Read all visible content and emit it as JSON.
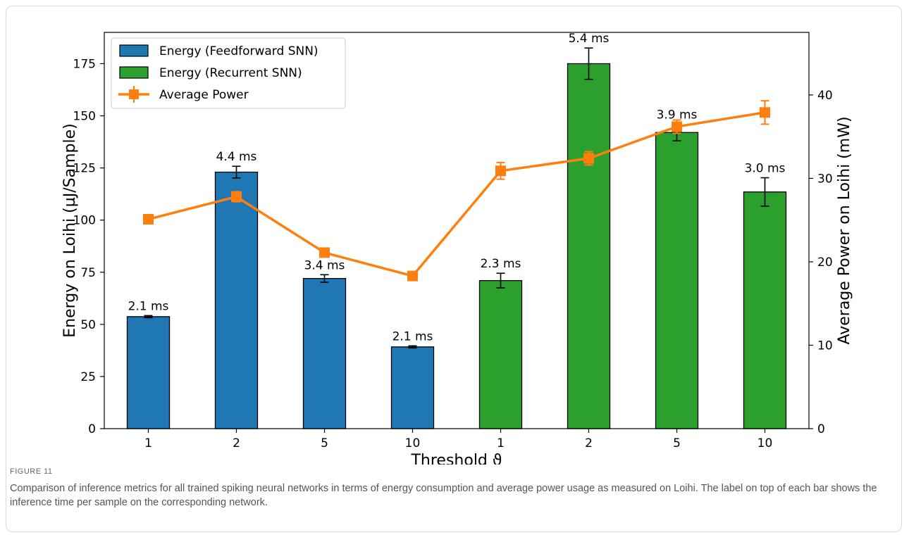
{
  "figure": {
    "label": "FIGURE 11",
    "caption": "Comparison of inference metrics for all trained spiking neural networks in terms of energy consumption and average power usage as measured on Loihi. The label on top of each bar shows the inference time per sample on the corresponding network."
  },
  "chart_data": {
    "type": "bar",
    "title": "",
    "xlabel": "Threshold ϑ",
    "ylabel": "Energy on Loihi (µJ/Sample)",
    "y2label": "Average Power on Loihi (mW)",
    "categories": [
      "1",
      "2",
      "5",
      "10",
      "1",
      "2",
      "5",
      "10"
    ],
    "ylim": [
      0,
      190
    ],
    "yticks": [
      0,
      25,
      50,
      75,
      100,
      125,
      150,
      175
    ],
    "y2lim": [
      0,
      47.5
    ],
    "y2ticks": [
      0,
      10,
      20,
      30,
      40
    ],
    "legend_position": "top-left",
    "colors": {
      "feedforward": "#1f77b4",
      "recurrent": "#2ca02c",
      "power": "#ff7f0e",
      "error": "#000000"
    },
    "series": [
      {
        "name": "Energy (Feedforward SNN)",
        "kind": "bar",
        "values": [
          53.7,
          123,
          72,
          39.2,
          null,
          null,
          null,
          null
        ],
        "errors": [
          0.5,
          2.8,
          1.8,
          0.5,
          null,
          null,
          null,
          null
        ],
        "labels": [
          "2.1 ms",
          "4.4 ms",
          "3.4 ms",
          "2.1 ms",
          "",
          "",
          "",
          ""
        ]
      },
      {
        "name": "Energy (Recurrent SNN)",
        "kind": "bar",
        "values": [
          null,
          null,
          null,
          null,
          71,
          175,
          142,
          113.5
        ],
        "errors": [
          null,
          null,
          null,
          null,
          3.5,
          7.5,
          4.0,
          6.8
        ],
        "labels": [
          "",
          "",
          "",
          "",
          "2.3 ms",
          "5.4 ms",
          "3.9 ms",
          "3.0 ms"
        ]
      },
      {
        "name": "Average Power",
        "kind": "line",
        "axis": "right",
        "values": [
          25.1,
          27.8,
          21.1,
          18.3,
          30.9,
          32.4,
          36.2,
          37.9
        ],
        "errors": [
          0.3,
          0.6,
          0.4,
          0.3,
          1.0,
          0.8,
          0.8,
          1.4
        ]
      }
    ]
  }
}
